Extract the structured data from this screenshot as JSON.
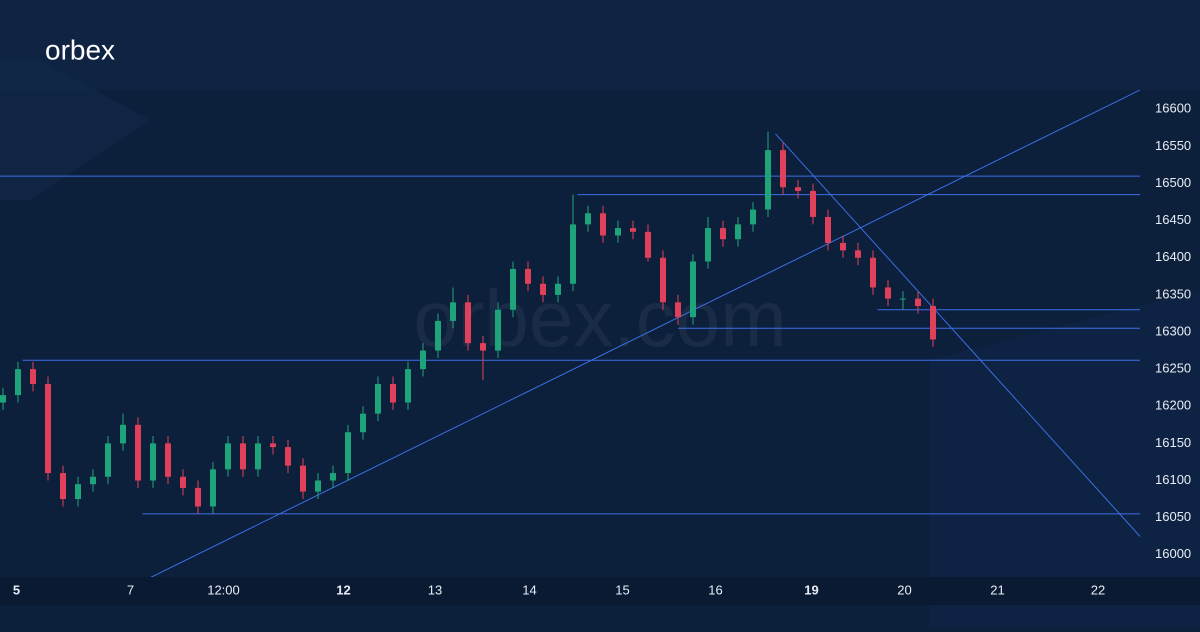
{
  "brand": "orbex",
  "watermark": "orbex.com",
  "chart_data": {
    "type": "candlestick",
    "xlim": [
      -0.2,
      75.8
    ],
    "xticks": [
      {
        "value": 0.9,
        "label": "5"
      },
      {
        "value": 8.5,
        "label": "7"
      },
      {
        "value": 14.7,
        "label": "12:00"
      },
      {
        "value": 22.7,
        "label": "12"
      },
      {
        "value": 28.8,
        "label": "13"
      },
      {
        "value": 35.1,
        "label": "14"
      },
      {
        "value": 41.3,
        "label": "15"
      },
      {
        "value": 47.5,
        "label": "16"
      },
      {
        "value": 53.9,
        "label": "19"
      },
      {
        "value": 60.1,
        "label": "20"
      },
      {
        "value": 66.3,
        "label": "21"
      },
      {
        "value": 73,
        "label": "22"
      }
    ],
    "bold_xticks": [
      "5",
      "12",
      "19"
    ],
    "ylim": [
      15970,
      16626
    ],
    "yticks": [
      16000,
      16050,
      16100,
      16150,
      16200,
      16250,
      16300,
      16350,
      16400,
      16450,
      16500,
      16550,
      16600
    ],
    "up_color": "#1fa37a",
    "down_color": "#e0405a",
    "line_color": "#3d6fe6",
    "open": [
      16205,
      16215,
      16250,
      16230,
      16110,
      16075,
      16095,
      16105,
      16150,
      16175,
      16100,
      16150,
      16105,
      16090,
      16065,
      16115,
      16150,
      16115,
      16150,
      16145,
      16120,
      16085,
      16100,
      16110,
      16165,
      16190,
      16230,
      16205,
      16250,
      16275,
      16315,
      16340,
      16285,
      16275,
      16330,
      16385,
      16365,
      16350,
      16365,
      16445,
      16460,
      16430,
      16440,
      16435,
      16400,
      16340,
      16320,
      16395,
      16440,
      16425,
      16445,
      16465,
      16545,
      16495,
      16490,
      16455,
      16420,
      16410,
      16400,
      16360,
      16345,
      16345,
      16335
    ],
    "high": [
      16225,
      16260,
      16260,
      16240,
      16120,
      16105,
      16115,
      16160,
      16190,
      16185,
      16160,
      16160,
      16115,
      16100,
      16125,
      16160,
      16160,
      16160,
      16160,
      16155,
      16130,
      16110,
      16120,
      16175,
      16200,
      16240,
      16240,
      16260,
      16285,
      16325,
      16360,
      16350,
      16295,
      16340,
      16395,
      16395,
      16375,
      16375,
      16485,
      16470,
      16470,
      16450,
      16450,
      16445,
      16410,
      16350,
      16405,
      16455,
      16450,
      16455,
      16475,
      16570,
      16555,
      16505,
      16500,
      16465,
      16430,
      16420,
      16410,
      16370,
      16355,
      16355,
      16345
    ],
    "low": [
      16195,
      16205,
      16220,
      16100,
      16065,
      16065,
      16085,
      16095,
      16140,
      16090,
      16090,
      16095,
      16080,
      16055,
      16055,
      16105,
      16105,
      16105,
      16135,
      16110,
      16075,
      16075,
      16090,
      16100,
      16155,
      16180,
      16195,
      16195,
      16240,
      16265,
      16305,
      16275,
      16235,
      16265,
      16320,
      16355,
      16340,
      16340,
      16355,
      16435,
      16420,
      16420,
      16425,
      16395,
      16330,
      16310,
      16310,
      16385,
      16415,
      16415,
      16435,
      16455,
      16485,
      16480,
      16445,
      16410,
      16400,
      16390,
      16350,
      16335,
      16330,
      16325,
      16280
    ],
    "close": [
      16215,
      16250,
      16230,
      16110,
      16075,
      16095,
      16105,
      16150,
      16175,
      16100,
      16150,
      16105,
      16090,
      16065,
      16115,
      16150,
      16115,
      16150,
      16145,
      16120,
      16085,
      16100,
      16110,
      16165,
      16190,
      16230,
      16205,
      16250,
      16275,
      16315,
      16340,
      16285,
      16275,
      16330,
      16385,
      16365,
      16350,
      16365,
      16445,
      16460,
      16430,
      16440,
      16435,
      16400,
      16340,
      16320,
      16395,
      16440,
      16425,
      16445,
      16465,
      16545,
      16495,
      16490,
      16455,
      16420,
      16410,
      16400,
      16360,
      16345,
      16345,
      16335,
      16290
    ],
    "levels": [
      {
        "x": [
          -0.2,
          75.8
        ],
        "y": [
          16510,
          16510
        ]
      },
      {
        "x": [
          38.3,
          75.8
        ],
        "y": [
          16485,
          16485
        ]
      },
      {
        "x": [
          58.3,
          75.8
        ],
        "y": [
          16330,
          16330
        ]
      },
      {
        "x": [
          45,
          75.8
        ],
        "y": [
          16305,
          16305
        ]
      },
      {
        "x": [
          1.3,
          75.8
        ],
        "y": [
          16262,
          16262
        ]
      },
      {
        "x": [
          9.3,
          75.8
        ],
        "y": [
          16055,
          16055
        ]
      },
      {
        "x": [
          9.8,
          75.8
        ],
        "y": [
          15969,
          16626
        ]
      },
      {
        "x": [
          51.5,
          76.1
        ],
        "y": [
          16567,
          16018
        ]
      }
    ]
  }
}
